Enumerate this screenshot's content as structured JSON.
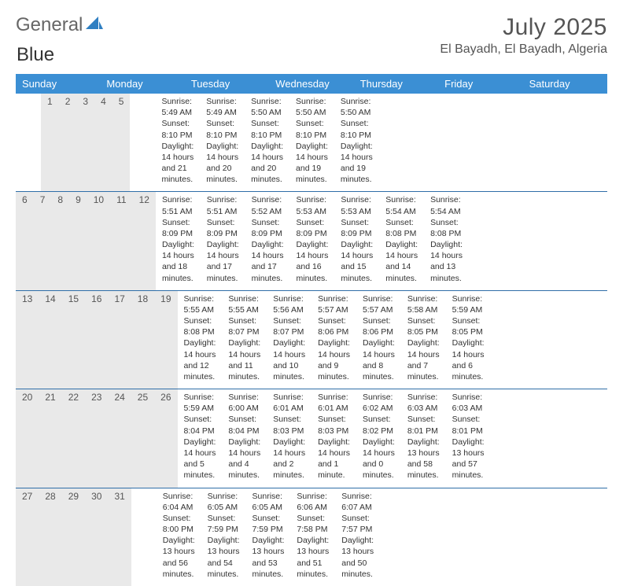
{
  "logo": {
    "text_a": "General",
    "text_b": "Blue"
  },
  "title": "July 2025",
  "location": "El Bayadh, El Bayadh, Algeria",
  "colors": {
    "header_bg": "#3b8fd4",
    "header_text": "#ffffff",
    "daynum_bg": "#e9e9e9",
    "row_divider": "#2f6ea8",
    "body_text": "#333333",
    "title_text": "#555555"
  },
  "day_names": [
    "Sunday",
    "Monday",
    "Tuesday",
    "Wednesday",
    "Thursday",
    "Friday",
    "Saturday"
  ],
  "weeks": [
    [
      {
        "num": "",
        "lines": [
          "",
          "",
          "",
          ""
        ]
      },
      {
        "num": "",
        "lines": [
          "",
          "",
          "",
          ""
        ]
      },
      {
        "num": "1",
        "lines": [
          "Sunrise: 5:49 AM",
          "Sunset: 8:10 PM",
          "Daylight: 14 hours",
          "and 21 minutes."
        ]
      },
      {
        "num": "2",
        "lines": [
          "Sunrise: 5:49 AM",
          "Sunset: 8:10 PM",
          "Daylight: 14 hours",
          "and 20 minutes."
        ]
      },
      {
        "num": "3",
        "lines": [
          "Sunrise: 5:50 AM",
          "Sunset: 8:10 PM",
          "Daylight: 14 hours",
          "and 20 minutes."
        ]
      },
      {
        "num": "4",
        "lines": [
          "Sunrise: 5:50 AM",
          "Sunset: 8:10 PM",
          "Daylight: 14 hours",
          "and 19 minutes."
        ]
      },
      {
        "num": "5",
        "lines": [
          "Sunrise: 5:50 AM",
          "Sunset: 8:10 PM",
          "Daylight: 14 hours",
          "and 19 minutes."
        ]
      }
    ],
    [
      {
        "num": "6",
        "lines": [
          "Sunrise: 5:51 AM",
          "Sunset: 8:09 PM",
          "Daylight: 14 hours",
          "and 18 minutes."
        ]
      },
      {
        "num": "7",
        "lines": [
          "Sunrise: 5:51 AM",
          "Sunset: 8:09 PM",
          "Daylight: 14 hours",
          "and 17 minutes."
        ]
      },
      {
        "num": "8",
        "lines": [
          "Sunrise: 5:52 AM",
          "Sunset: 8:09 PM",
          "Daylight: 14 hours",
          "and 17 minutes."
        ]
      },
      {
        "num": "9",
        "lines": [
          "Sunrise: 5:53 AM",
          "Sunset: 8:09 PM",
          "Daylight: 14 hours",
          "and 16 minutes."
        ]
      },
      {
        "num": "10",
        "lines": [
          "Sunrise: 5:53 AM",
          "Sunset: 8:09 PM",
          "Daylight: 14 hours",
          "and 15 minutes."
        ]
      },
      {
        "num": "11",
        "lines": [
          "Sunrise: 5:54 AM",
          "Sunset: 8:08 PM",
          "Daylight: 14 hours",
          "and 14 minutes."
        ]
      },
      {
        "num": "12",
        "lines": [
          "Sunrise: 5:54 AM",
          "Sunset: 8:08 PM",
          "Daylight: 14 hours",
          "and 13 minutes."
        ]
      }
    ],
    [
      {
        "num": "13",
        "lines": [
          "Sunrise: 5:55 AM",
          "Sunset: 8:08 PM",
          "Daylight: 14 hours",
          "and 12 minutes."
        ]
      },
      {
        "num": "14",
        "lines": [
          "Sunrise: 5:55 AM",
          "Sunset: 8:07 PM",
          "Daylight: 14 hours",
          "and 11 minutes."
        ]
      },
      {
        "num": "15",
        "lines": [
          "Sunrise: 5:56 AM",
          "Sunset: 8:07 PM",
          "Daylight: 14 hours",
          "and 10 minutes."
        ]
      },
      {
        "num": "16",
        "lines": [
          "Sunrise: 5:57 AM",
          "Sunset: 8:06 PM",
          "Daylight: 14 hours",
          "and 9 minutes."
        ]
      },
      {
        "num": "17",
        "lines": [
          "Sunrise: 5:57 AM",
          "Sunset: 8:06 PM",
          "Daylight: 14 hours",
          "and 8 minutes."
        ]
      },
      {
        "num": "18",
        "lines": [
          "Sunrise: 5:58 AM",
          "Sunset: 8:05 PM",
          "Daylight: 14 hours",
          "and 7 minutes."
        ]
      },
      {
        "num": "19",
        "lines": [
          "Sunrise: 5:59 AM",
          "Sunset: 8:05 PM",
          "Daylight: 14 hours",
          "and 6 minutes."
        ]
      }
    ],
    [
      {
        "num": "20",
        "lines": [
          "Sunrise: 5:59 AM",
          "Sunset: 8:04 PM",
          "Daylight: 14 hours",
          "and 5 minutes."
        ]
      },
      {
        "num": "21",
        "lines": [
          "Sunrise: 6:00 AM",
          "Sunset: 8:04 PM",
          "Daylight: 14 hours",
          "and 4 minutes."
        ]
      },
      {
        "num": "22",
        "lines": [
          "Sunrise: 6:01 AM",
          "Sunset: 8:03 PM",
          "Daylight: 14 hours",
          "and 2 minutes."
        ]
      },
      {
        "num": "23",
        "lines": [
          "Sunrise: 6:01 AM",
          "Sunset: 8:03 PM",
          "Daylight: 14 hours",
          "and 1 minute."
        ]
      },
      {
        "num": "24",
        "lines": [
          "Sunrise: 6:02 AM",
          "Sunset: 8:02 PM",
          "Daylight: 14 hours",
          "and 0 minutes."
        ]
      },
      {
        "num": "25",
        "lines": [
          "Sunrise: 6:03 AM",
          "Sunset: 8:01 PM",
          "Daylight: 13 hours",
          "and 58 minutes."
        ]
      },
      {
        "num": "26",
        "lines": [
          "Sunrise: 6:03 AM",
          "Sunset: 8:01 PM",
          "Daylight: 13 hours",
          "and 57 minutes."
        ]
      }
    ],
    [
      {
        "num": "27",
        "lines": [
          "Sunrise: 6:04 AM",
          "Sunset: 8:00 PM",
          "Daylight: 13 hours",
          "and 56 minutes."
        ]
      },
      {
        "num": "28",
        "lines": [
          "Sunrise: 6:05 AM",
          "Sunset: 7:59 PM",
          "Daylight: 13 hours",
          "and 54 minutes."
        ]
      },
      {
        "num": "29",
        "lines": [
          "Sunrise: 6:05 AM",
          "Sunset: 7:59 PM",
          "Daylight: 13 hours",
          "and 53 minutes."
        ]
      },
      {
        "num": "30",
        "lines": [
          "Sunrise: 6:06 AM",
          "Sunset: 7:58 PM",
          "Daylight: 13 hours",
          "and 51 minutes."
        ]
      },
      {
        "num": "31",
        "lines": [
          "Sunrise: 6:07 AM",
          "Sunset: 7:57 PM",
          "Daylight: 13 hours",
          "and 50 minutes."
        ]
      },
      {
        "num": "",
        "lines": [
          "",
          "",
          "",
          ""
        ]
      },
      {
        "num": "",
        "lines": [
          "",
          "",
          "",
          ""
        ]
      }
    ]
  ]
}
